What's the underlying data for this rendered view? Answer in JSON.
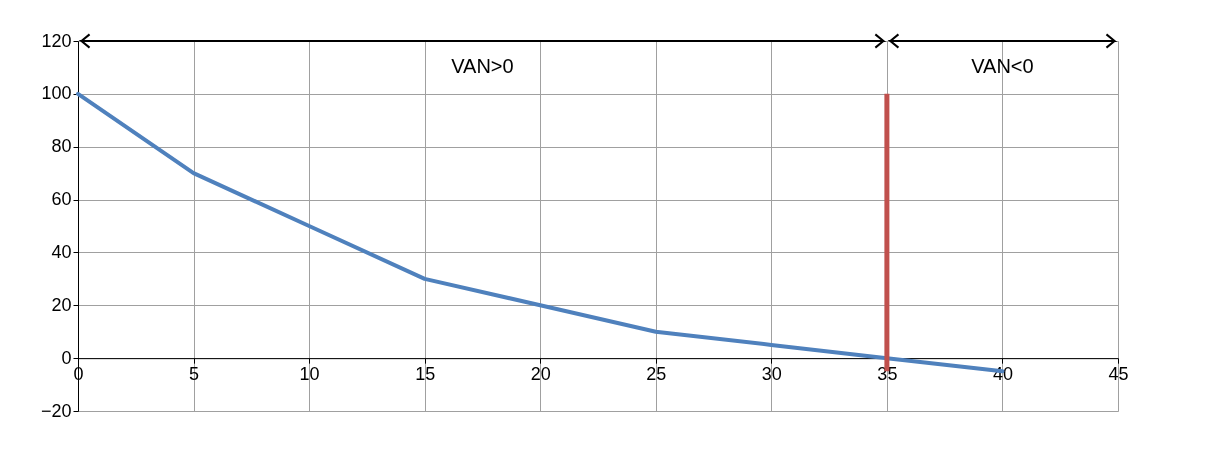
{
  "chart_data": {
    "type": "line",
    "x": [
      0,
      5,
      10,
      15,
      20,
      25,
      30,
      35,
      40
    ],
    "series": [
      {
        "color": "#4f81bd",
        "values": [
          100,
          70,
          50,
          30,
          20,
          10,
          5,
          0,
          -5
        ]
      }
    ],
    "xlim": [
      0,
      45
    ],
    "xticks": [
      0,
      5,
      10,
      15,
      20,
      25,
      30,
      35,
      40,
      45
    ],
    "ylim": [
      -20,
      120
    ],
    "yticks": [
      -20,
      0,
      20,
      40,
      60,
      80,
      100,
      120
    ],
    "grid": true,
    "marker": "none",
    "line_style": "solid",
    "ref_lines": [
      {
        "axis": "x",
        "value": 35,
        "color": "#c0504d"
      },
      {
        "axis": "y",
        "value": 120,
        "color": "#000000"
      }
    ],
    "annotations": [
      "VAN>0",
      "VAN<0"
    ]
  }
}
